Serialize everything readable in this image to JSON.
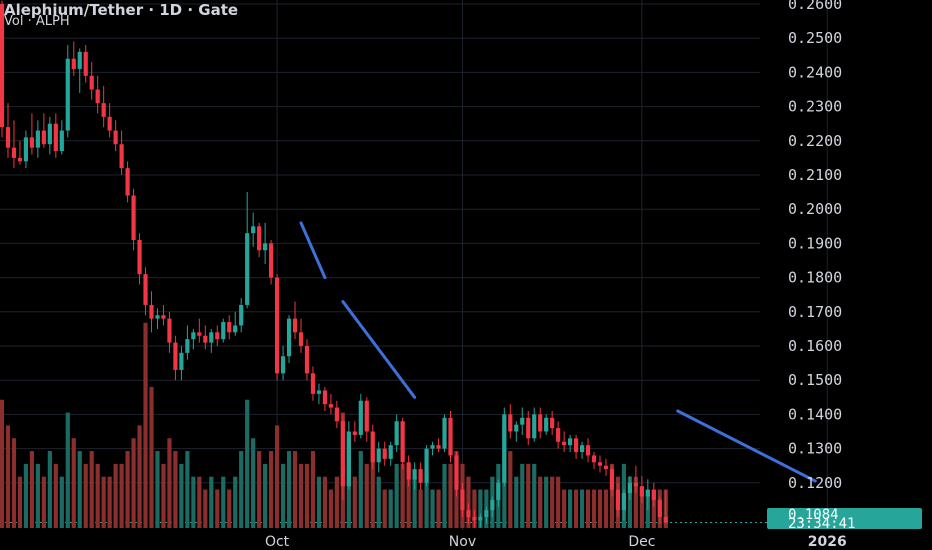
{
  "header": {
    "title": "Alephium/Tether · 1D · Gate",
    "volume_label": "Vol · ALPH"
  },
  "colors": {
    "background": "#000000",
    "up": "#26a69a",
    "down": "#f23645",
    "up_volume": "#1b6b63",
    "down_volume": "#8a2e2e",
    "trendline": "#3f6fd8",
    "grid": "#1e222d",
    "last_price_bg": "#26a69a"
  },
  "last_price": {
    "value": "0.1084",
    "countdown": "23:34:41"
  },
  "chart_data": {
    "type": "candlestick",
    "title": "Alephium/Tether · 1D · Gate",
    "ylim": [
      0.1052,
      0.2602
    ],
    "y_ticks": [
      "0.2600",
      "0.2500",
      "0.2400",
      "0.2300",
      "0.2200",
      "0.2100",
      "0.2000",
      "0.1900",
      "0.1800",
      "0.1700",
      "0.1600",
      "0.1500",
      "0.1400",
      "0.1300",
      "0.1200"
    ],
    "x_ticks": [
      {
        "label": "Oct",
        "date": "2025-10-01"
      },
      {
        "label": "Nov",
        "date": "2025-11-01"
      },
      {
        "label": "Dec",
        "date": "2025-12-01"
      },
      {
        "label": "2026",
        "date": "2026-01-01"
      }
    ],
    "first_date": "2025-08-16",
    "candles": [
      [
        0.26,
        0.261,
        0.221,
        0.224,
        1.0
      ],
      [
        0.224,
        0.231,
        0.215,
        0.218,
        0.8
      ],
      [
        0.218,
        0.226,
        0.212,
        0.215,
        0.7
      ],
      [
        0.215,
        0.22,
        0.213,
        0.214,
        0.4
      ],
      [
        0.214,
        0.223,
        0.212,
        0.221,
        0.5
      ],
      [
        0.221,
        0.228,
        0.216,
        0.218,
        0.6
      ],
      [
        0.218,
        0.226,
        0.215,
        0.223,
        0.5
      ],
      [
        0.223,
        0.228,
        0.218,
        0.219,
        0.4
      ],
      [
        0.219,
        0.227,
        0.216,
        0.225,
        0.6
      ],
      [
        0.225,
        0.228,
        0.215,
        0.217,
        0.5
      ],
      [
        0.217,
        0.226,
        0.216,
        0.223,
        0.4
      ],
      [
        0.223,
        0.248,
        0.221,
        0.244,
        0.9
      ],
      [
        0.244,
        0.249,
        0.239,
        0.241,
        0.7
      ],
      [
        0.241,
        0.247,
        0.234,
        0.246,
        0.6
      ],
      [
        0.246,
        0.248,
        0.237,
        0.239,
        0.5
      ],
      [
        0.239,
        0.243,
        0.232,
        0.235,
        0.6
      ],
      [
        0.235,
        0.239,
        0.228,
        0.231,
        0.5
      ],
      [
        0.231,
        0.236,
        0.224,
        0.227,
        0.4
      ],
      [
        0.227,
        0.231,
        0.221,
        0.223,
        0.4
      ],
      [
        0.223,
        0.226,
        0.217,
        0.219,
        0.5
      ],
      [
        0.219,
        0.223,
        0.21,
        0.212,
        0.5
      ],
      [
        0.212,
        0.214,
        0.202,
        0.204,
        0.6
      ],
      [
        0.204,
        0.206,
        0.188,
        0.191,
        0.7
      ],
      [
        0.191,
        0.193,
        0.178,
        0.181,
        0.8
      ],
      [
        0.181,
        0.183,
        0.169,
        0.172,
        1.6
      ],
      [
        0.172,
        0.176,
        0.164,
        0.168,
        1.1
      ],
      [
        0.168,
        0.171,
        0.165,
        0.169,
        0.6
      ],
      [
        0.169,
        0.172,
        0.166,
        0.168,
        0.5
      ],
      [
        0.168,
        0.17,
        0.158,
        0.161,
        0.7
      ],
      [
        0.161,
        0.163,
        0.15,
        0.153,
        0.6
      ],
      [
        0.153,
        0.16,
        0.15,
        0.158,
        0.5
      ],
      [
        0.158,
        0.166,
        0.156,
        0.162,
        0.6
      ],
      [
        0.162,
        0.165,
        0.159,
        0.164,
        0.4
      ],
      [
        0.164,
        0.168,
        0.161,
        0.163,
        0.4
      ],
      [
        0.163,
        0.166,
        0.159,
        0.161,
        0.3
      ],
      [
        0.161,
        0.165,
        0.158,
        0.164,
        0.4
      ],
      [
        0.164,
        0.166,
        0.16,
        0.162,
        0.3
      ],
      [
        0.162,
        0.168,
        0.161,
        0.167,
        0.4
      ],
      [
        0.167,
        0.169,
        0.162,
        0.164,
        0.3
      ],
      [
        0.164,
        0.17,
        0.163,
        0.166,
        0.4
      ],
      [
        0.166,
        0.174,
        0.164,
        0.172,
        0.6
      ],
      [
        0.172,
        0.205,
        0.171,
        0.193,
        1.0
      ],
      [
        0.193,
        0.199,
        0.189,
        0.195,
        0.7
      ],
      [
        0.195,
        0.196,
        0.186,
        0.188,
        0.6
      ],
      [
        0.188,
        0.196,
        0.184,
        0.19,
        0.5
      ],
      [
        0.19,
        0.191,
        0.178,
        0.18,
        0.6
      ],
      [
        0.18,
        0.181,
        0.15,
        0.152,
        0.8
      ],
      [
        0.152,
        0.16,
        0.15,
        0.157,
        0.5
      ],
      [
        0.157,
        0.169,
        0.155,
        0.168,
        0.6
      ],
      [
        0.168,
        0.173,
        0.162,
        0.164,
        0.6
      ],
      [
        0.164,
        0.168,
        0.158,
        0.16,
        0.5
      ],
      [
        0.16,
        0.162,
        0.15,
        0.152,
        0.5
      ],
      [
        0.152,
        0.154,
        0.144,
        0.146,
        0.6
      ],
      [
        0.146,
        0.149,
        0.143,
        0.147,
        0.4
      ],
      [
        0.147,
        0.148,
        0.141,
        0.143,
        0.4
      ],
      [
        0.143,
        0.146,
        0.14,
        0.142,
        0.3
      ],
      [
        0.142,
        0.144,
        0.136,
        0.138,
        0.4
      ],
      [
        0.138,
        0.14,
        0.115,
        0.119,
        0.9
      ],
      [
        0.119,
        0.138,
        0.118,
        0.135,
        0.7
      ],
      [
        0.135,
        0.138,
        0.132,
        0.134,
        0.4
      ],
      [
        0.134,
        0.146,
        0.133,
        0.144,
        0.6
      ],
      [
        0.144,
        0.145,
        0.132,
        0.135,
        0.5
      ],
      [
        0.135,
        0.137,
        0.124,
        0.126,
        0.6
      ],
      [
        0.126,
        0.132,
        0.123,
        0.13,
        0.4
      ],
      [
        0.13,
        0.132,
        0.125,
        0.127,
        0.3
      ],
      [
        0.127,
        0.132,
        0.125,
        0.131,
        0.3
      ],
      [
        0.131,
        0.14,
        0.129,
        0.138,
        0.5
      ],
      [
        0.138,
        0.139,
        0.124,
        0.126,
        0.5
      ],
      [
        0.126,
        0.128,
        0.119,
        0.121,
        0.5
      ],
      [
        0.121,
        0.126,
        0.118,
        0.124,
        0.4
      ],
      [
        0.124,
        0.126,
        0.118,
        0.12,
        0.3
      ],
      [
        0.12,
        0.131,
        0.119,
        0.13,
        0.4
      ],
      [
        0.13,
        0.132,
        0.128,
        0.131,
        0.3
      ],
      [
        0.131,
        0.133,
        0.129,
        0.13,
        0.3
      ],
      [
        0.13,
        0.14,
        0.129,
        0.139,
        0.5
      ],
      [
        0.139,
        0.141,
        0.126,
        0.128,
        0.5
      ],
      [
        0.128,
        0.129,
        0.116,
        0.118,
        0.6
      ],
      [
        0.118,
        0.12,
        0.11,
        0.112,
        0.5
      ],
      [
        0.112,
        0.114,
        0.108,
        0.11,
        0.4
      ],
      [
        0.11,
        0.112,
        0.107,
        0.109,
        0.3
      ],
      [
        0.109,
        0.111,
        0.107,
        0.11,
        0.3
      ],
      [
        0.11,
        0.113,
        0.108,
        0.112,
        0.3
      ],
      [
        0.112,
        0.116,
        0.11,
        0.115,
        0.4
      ],
      [
        0.115,
        0.121,
        0.113,
        0.12,
        0.5
      ],
      [
        0.12,
        0.142,
        0.119,
        0.14,
        0.8
      ],
      [
        0.14,
        0.143,
        0.133,
        0.135,
        0.6
      ],
      [
        0.135,
        0.138,
        0.132,
        0.137,
        0.4
      ],
      [
        0.137,
        0.142,
        0.134,
        0.139,
        0.5
      ],
      [
        0.139,
        0.141,
        0.131,
        0.133,
        0.5
      ],
      [
        0.133,
        0.142,
        0.132,
        0.14,
        0.5
      ],
      [
        0.14,
        0.142,
        0.133,
        0.135,
        0.4
      ],
      [
        0.135,
        0.14,
        0.134,
        0.139,
        0.4
      ],
      [
        0.139,
        0.141,
        0.134,
        0.136,
        0.4
      ],
      [
        0.136,
        0.138,
        0.13,
        0.132,
        0.4
      ],
      [
        0.132,
        0.135,
        0.129,
        0.131,
        0.3
      ],
      [
        0.131,
        0.134,
        0.129,
        0.133,
        0.3
      ],
      [
        0.133,
        0.134,
        0.127,
        0.129,
        0.3
      ],
      [
        0.129,
        0.132,
        0.127,
        0.131,
        0.3
      ],
      [
        0.131,
        0.133,
        0.126,
        0.128,
        0.3
      ],
      [
        0.128,
        0.129,
        0.124,
        0.126,
        0.3
      ],
      [
        0.126,
        0.128,
        0.123,
        0.125,
        0.3
      ],
      [
        0.125,
        0.127,
        0.122,
        0.124,
        0.3
      ],
      [
        0.124,
        0.125,
        0.116,
        0.118,
        0.5
      ],
      [
        0.118,
        0.12,
        0.11,
        0.112,
        0.4
      ],
      [
        0.112,
        0.118,
        0.109,
        0.117,
        0.5
      ],
      [
        0.117,
        0.122,
        0.115,
        0.12,
        0.4
      ],
      [
        0.12,
        0.125,
        0.117,
        0.119,
        0.4
      ],
      [
        0.119,
        0.122,
        0.114,
        0.116,
        0.3
      ],
      [
        0.116,
        0.121,
        0.112,
        0.118,
        0.3
      ],
      [
        0.118,
        0.12,
        0.113,
        0.115,
        0.3
      ],
      [
        0.115,
        0.116,
        0.108,
        0.11,
        0.3
      ],
      [
        0.11,
        0.118,
        0.108,
        0.1084,
        0.3
      ]
    ],
    "trendlines": [
      {
        "from": [
          "2025-10-05",
          0.196
        ],
        "to": [
          "2025-10-09",
          0.18
        ]
      },
      {
        "from": [
          "2025-10-12",
          0.173
        ],
        "to": [
          "2025-10-24",
          0.145
        ]
      },
      {
        "from": [
          "2025-12-07",
          0.141
        ],
        "to": [
          "2025-12-30",
          0.1205
        ]
      }
    ]
  }
}
